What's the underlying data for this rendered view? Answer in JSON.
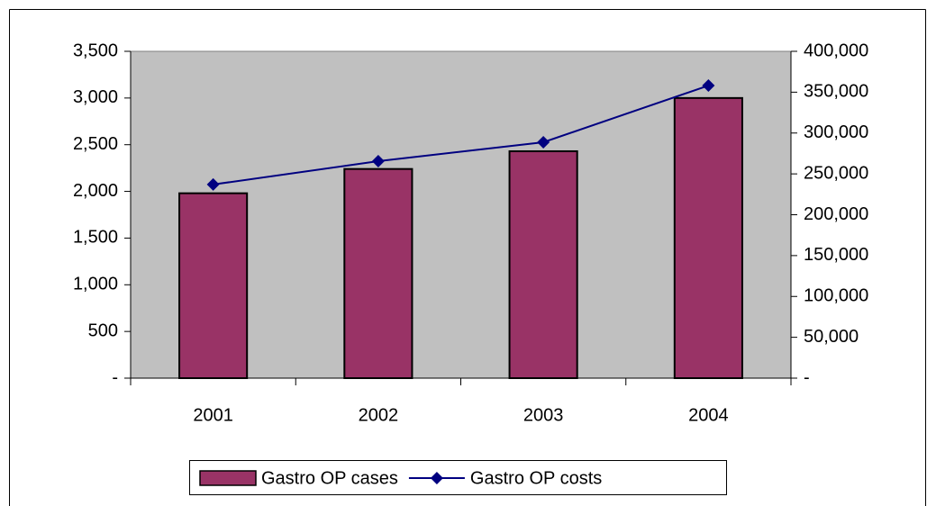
{
  "chart_data": {
    "type": "bar",
    "categories": [
      "2001",
      "2002",
      "2003",
      "2004"
    ],
    "series": [
      {
        "name": "Gastro OP cases",
        "type": "bar",
        "color": "#993366",
        "values": [
          1980,
          2240,
          2430,
          3000
        ]
      },
      {
        "name": "Gastro OP costs",
        "type": "line",
        "axis": "y2",
        "color": "#000080",
        "values": [
          237000,
          265600,
          288700,
          358100
        ]
      }
    ],
    "ylim": [
      0,
      3500
    ],
    "yticks": [
      {
        "value": 0,
        "label": "-"
      },
      500,
      {
        "value": 1000,
        "label": "1,000"
      },
      {
        "value": 1500,
        "label": "1,500"
      },
      {
        "value": 2000,
        "label": "2,000"
      },
      {
        "value": 2500,
        "label": "2,500"
      },
      {
        "value": 3000,
        "label": "3,000"
      },
      {
        "value": 3500,
        "label": "3,500"
      }
    ],
    "y2lim": [
      0,
      400000
    ],
    "y2ticks": [
      {
        "value": 0,
        "label": "-"
      },
      {
        "value": 50000,
        "label": "50,000"
      },
      {
        "value": 100000,
        "label": "100,000"
      },
      {
        "value": 150000,
        "label": "150,000"
      },
      {
        "value": 200000,
        "label": "200,000"
      },
      {
        "value": 250000,
        "label": "250,000"
      },
      {
        "value": 300000,
        "label": "300,000"
      },
      {
        "value": 350000,
        "label": "350,000"
      },
      {
        "value": 400000,
        "label": "400,000"
      }
    ],
    "plot_background": "#c0c0c0",
    "legend": "bottom"
  }
}
